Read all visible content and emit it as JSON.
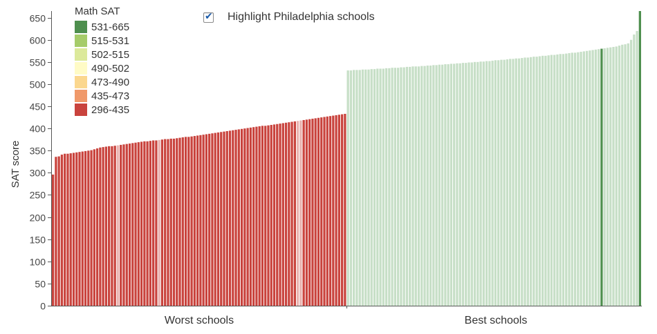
{
  "highlight": {
    "label": "Highlight Philadelphia schools",
    "checked": true,
    "check_glyph": "✔"
  },
  "legend": {
    "title": "Math SAT",
    "items": [
      {
        "label": "531-665",
        "color": "#4e8f4e"
      },
      {
        "label": "515-531",
        "color": "#a6cc6a"
      },
      {
        "label": "502-515",
        "color": "#dce99b"
      },
      {
        "label": "490-502",
        "color": "#fffbc6"
      },
      {
        "label": "473-490",
        "color": "#fbd78e"
      },
      {
        "label": "435-473",
        "color": "#f0996a"
      },
      {
        "label": "296-435",
        "color": "#c9433d"
      }
    ]
  },
  "chart_data": {
    "type": "bar",
    "ylabel": "SAT score",
    "ylim": [
      0,
      665
    ],
    "yticks": [
      0,
      50,
      100,
      150,
      200,
      250,
      300,
      350,
      400,
      450,
      500,
      550,
      600,
      650
    ],
    "grid": false,
    "highlight_on": true,
    "groups": [
      {
        "label": "Worst schools",
        "color": "#c9433d",
        "faded_color": "#e9b4b1",
        "values": [
          296,
          336,
          337,
          341,
          343,
          343,
          344,
          345,
          346,
          347,
          348,
          349,
          350,
          351,
          353,
          355,
          357,
          358,
          359,
          360,
          360,
          361,
          362,
          363,
          364,
          365,
          366,
          367,
          368,
          369,
          370,
          371,
          371,
          372,
          373,
          373,
          374,
          375,
          376,
          376,
          377,
          377,
          378,
          379,
          380,
          381,
          381,
          382,
          383,
          384,
          385,
          386,
          387,
          388,
          389,
          390,
          391,
          392,
          393,
          394,
          395,
          396,
          397,
          398,
          399,
          400,
          401,
          402,
          403,
          404,
          405,
          406,
          406,
          407,
          408,
          409,
          410,
          411,
          412,
          413,
          414,
          415,
          416,
          417,
          418,
          419,
          420,
          421,
          422,
          423,
          424,
          425,
          426,
          427,
          428,
          429,
          430,
          431,
          432,
          433
        ],
        "highlighted": [
          1,
          1,
          1,
          1,
          1,
          1,
          1,
          1,
          1,
          1,
          1,
          1,
          1,
          1,
          1,
          1,
          1,
          1,
          1,
          1,
          1,
          1,
          0,
          1,
          1,
          1,
          1,
          1,
          1,
          1,
          1,
          1,
          1,
          1,
          1,
          1,
          0,
          1,
          1,
          1,
          1,
          1,
          1,
          1,
          1,
          1,
          1,
          1,
          1,
          1,
          1,
          1,
          1,
          1,
          1,
          1,
          1,
          1,
          1,
          1,
          1,
          1,
          1,
          1,
          1,
          1,
          1,
          1,
          1,
          1,
          1,
          1,
          1,
          1,
          1,
          1,
          1,
          1,
          1,
          1,
          1,
          1,
          1,
          0,
          0,
          1,
          1,
          1,
          1,
          1,
          1,
          1,
          1,
          1,
          1,
          1,
          1,
          1,
          1,
          1
        ]
      },
      {
        "label": "Best schools",
        "color": "#4e8f4e",
        "faded_color": "#c7dfc7",
        "values": [
          531,
          531,
          532,
          532,
          532,
          533,
          533,
          533,
          534,
          534,
          535,
          535,
          535,
          536,
          536,
          537,
          537,
          537,
          538,
          538,
          539,
          539,
          540,
          540,
          540,
          541,
          541,
          542,
          542,
          543,
          543,
          544,
          544,
          545,
          545,
          546,
          546,
          547,
          547,
          548,
          548,
          549,
          549,
          550,
          550,
          551,
          551,
          552,
          552,
          553,
          554,
          554,
          555,
          555,
          556,
          557,
          557,
          558,
          558,
          559,
          560,
          560,
          561,
          562,
          562,
          563,
          564,
          564,
          565,
          566,
          566,
          567,
          568,
          568,
          569,
          570,
          571,
          571,
          572,
          573,
          574,
          575,
          576,
          577,
          578,
          579,
          580,
          581,
          582,
          583,
          584,
          585,
          587,
          589,
          590,
          592,
          600,
          612,
          620,
          665
        ],
        "highlighted": [
          0,
          0,
          0,
          0,
          0,
          0,
          0,
          0,
          0,
          0,
          0,
          0,
          0,
          0,
          0,
          0,
          0,
          0,
          0,
          0,
          0,
          0,
          0,
          0,
          0,
          0,
          0,
          0,
          0,
          0,
          0,
          0,
          0,
          0,
          0,
          0,
          0,
          0,
          0,
          0,
          0,
          0,
          0,
          0,
          0,
          0,
          0,
          0,
          0,
          0,
          0,
          0,
          0,
          0,
          0,
          0,
          0,
          0,
          0,
          0,
          0,
          0,
          0,
          0,
          0,
          0,
          0,
          0,
          0,
          0,
          0,
          0,
          0,
          0,
          0,
          0,
          0,
          0,
          0,
          0,
          0,
          0,
          0,
          0,
          0,
          0,
          1,
          0,
          0,
          0,
          0,
          0,
          0,
          0,
          0,
          0,
          0,
          0,
          0,
          1
        ]
      }
    ]
  }
}
